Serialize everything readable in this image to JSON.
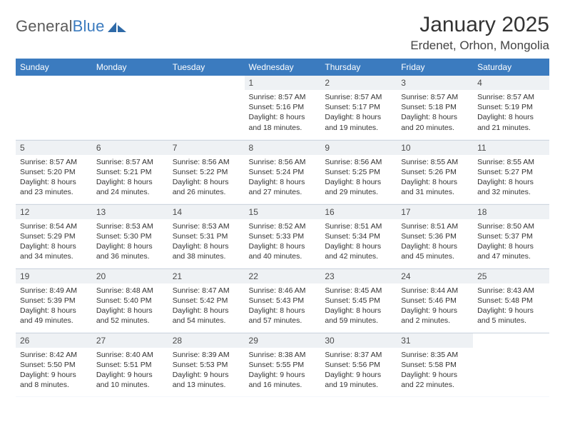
{
  "brand": {
    "name_a": "General",
    "name_b": "Blue"
  },
  "title": "January 2025",
  "location": "Erdenet, Orhon, Mongolia",
  "colors": {
    "header_bg": "#3b7bbf",
    "daynum_bg": "#eef1f4",
    "text": "#333333"
  },
  "day_headers": [
    "Sunday",
    "Monday",
    "Tuesday",
    "Wednesday",
    "Thursday",
    "Friday",
    "Saturday"
  ],
  "weeks": [
    [
      null,
      null,
      null,
      {
        "n": "1",
        "sr": "Sunrise: 8:57 AM",
        "ss": "Sunset: 5:16 PM",
        "dl": "Daylight: 8 hours and 18 minutes."
      },
      {
        "n": "2",
        "sr": "Sunrise: 8:57 AM",
        "ss": "Sunset: 5:17 PM",
        "dl": "Daylight: 8 hours and 19 minutes."
      },
      {
        "n": "3",
        "sr": "Sunrise: 8:57 AM",
        "ss": "Sunset: 5:18 PM",
        "dl": "Daylight: 8 hours and 20 minutes."
      },
      {
        "n": "4",
        "sr": "Sunrise: 8:57 AM",
        "ss": "Sunset: 5:19 PM",
        "dl": "Daylight: 8 hours and 21 minutes."
      }
    ],
    [
      {
        "n": "5",
        "sr": "Sunrise: 8:57 AM",
        "ss": "Sunset: 5:20 PM",
        "dl": "Daylight: 8 hours and 23 minutes."
      },
      {
        "n": "6",
        "sr": "Sunrise: 8:57 AM",
        "ss": "Sunset: 5:21 PM",
        "dl": "Daylight: 8 hours and 24 minutes."
      },
      {
        "n": "7",
        "sr": "Sunrise: 8:56 AM",
        "ss": "Sunset: 5:22 PM",
        "dl": "Daylight: 8 hours and 26 minutes."
      },
      {
        "n": "8",
        "sr": "Sunrise: 8:56 AM",
        "ss": "Sunset: 5:24 PM",
        "dl": "Daylight: 8 hours and 27 minutes."
      },
      {
        "n": "9",
        "sr": "Sunrise: 8:56 AM",
        "ss": "Sunset: 5:25 PM",
        "dl": "Daylight: 8 hours and 29 minutes."
      },
      {
        "n": "10",
        "sr": "Sunrise: 8:55 AM",
        "ss": "Sunset: 5:26 PM",
        "dl": "Daylight: 8 hours and 31 minutes."
      },
      {
        "n": "11",
        "sr": "Sunrise: 8:55 AM",
        "ss": "Sunset: 5:27 PM",
        "dl": "Daylight: 8 hours and 32 minutes."
      }
    ],
    [
      {
        "n": "12",
        "sr": "Sunrise: 8:54 AM",
        "ss": "Sunset: 5:29 PM",
        "dl": "Daylight: 8 hours and 34 minutes."
      },
      {
        "n": "13",
        "sr": "Sunrise: 8:53 AM",
        "ss": "Sunset: 5:30 PM",
        "dl": "Daylight: 8 hours and 36 minutes."
      },
      {
        "n": "14",
        "sr": "Sunrise: 8:53 AM",
        "ss": "Sunset: 5:31 PM",
        "dl": "Daylight: 8 hours and 38 minutes."
      },
      {
        "n": "15",
        "sr": "Sunrise: 8:52 AM",
        "ss": "Sunset: 5:33 PM",
        "dl": "Daylight: 8 hours and 40 minutes."
      },
      {
        "n": "16",
        "sr": "Sunrise: 8:51 AM",
        "ss": "Sunset: 5:34 PM",
        "dl": "Daylight: 8 hours and 42 minutes."
      },
      {
        "n": "17",
        "sr": "Sunrise: 8:51 AM",
        "ss": "Sunset: 5:36 PM",
        "dl": "Daylight: 8 hours and 45 minutes."
      },
      {
        "n": "18",
        "sr": "Sunrise: 8:50 AM",
        "ss": "Sunset: 5:37 PM",
        "dl": "Daylight: 8 hours and 47 minutes."
      }
    ],
    [
      {
        "n": "19",
        "sr": "Sunrise: 8:49 AM",
        "ss": "Sunset: 5:39 PM",
        "dl": "Daylight: 8 hours and 49 minutes."
      },
      {
        "n": "20",
        "sr": "Sunrise: 8:48 AM",
        "ss": "Sunset: 5:40 PM",
        "dl": "Daylight: 8 hours and 52 minutes."
      },
      {
        "n": "21",
        "sr": "Sunrise: 8:47 AM",
        "ss": "Sunset: 5:42 PM",
        "dl": "Daylight: 8 hours and 54 minutes."
      },
      {
        "n": "22",
        "sr": "Sunrise: 8:46 AM",
        "ss": "Sunset: 5:43 PM",
        "dl": "Daylight: 8 hours and 57 minutes."
      },
      {
        "n": "23",
        "sr": "Sunrise: 8:45 AM",
        "ss": "Sunset: 5:45 PM",
        "dl": "Daylight: 8 hours and 59 minutes."
      },
      {
        "n": "24",
        "sr": "Sunrise: 8:44 AM",
        "ss": "Sunset: 5:46 PM",
        "dl": "Daylight: 9 hours and 2 minutes."
      },
      {
        "n": "25",
        "sr": "Sunrise: 8:43 AM",
        "ss": "Sunset: 5:48 PM",
        "dl": "Daylight: 9 hours and 5 minutes."
      }
    ],
    [
      {
        "n": "26",
        "sr": "Sunrise: 8:42 AM",
        "ss": "Sunset: 5:50 PM",
        "dl": "Daylight: 9 hours and 8 minutes."
      },
      {
        "n": "27",
        "sr": "Sunrise: 8:40 AM",
        "ss": "Sunset: 5:51 PM",
        "dl": "Daylight: 9 hours and 10 minutes."
      },
      {
        "n": "28",
        "sr": "Sunrise: 8:39 AM",
        "ss": "Sunset: 5:53 PM",
        "dl": "Daylight: 9 hours and 13 minutes."
      },
      {
        "n": "29",
        "sr": "Sunrise: 8:38 AM",
        "ss": "Sunset: 5:55 PM",
        "dl": "Daylight: 9 hours and 16 minutes."
      },
      {
        "n": "30",
        "sr": "Sunrise: 8:37 AM",
        "ss": "Sunset: 5:56 PM",
        "dl": "Daylight: 9 hours and 19 minutes."
      },
      {
        "n": "31",
        "sr": "Sunrise: 8:35 AM",
        "ss": "Sunset: 5:58 PM",
        "dl": "Daylight: 9 hours and 22 minutes."
      },
      null
    ]
  ]
}
